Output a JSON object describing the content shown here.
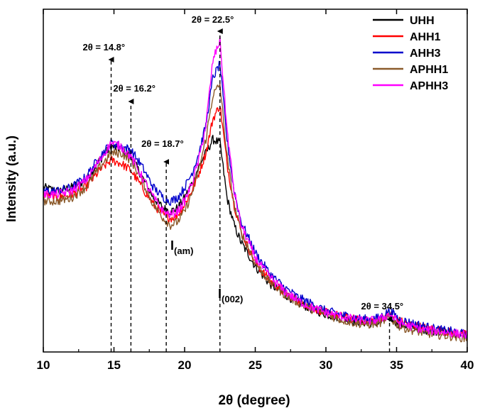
{
  "chart_data": {
    "type": "line",
    "xlabel": "2θ (degree)",
    "ylabel": "Intensity (a.u.)",
    "xlim": [
      10,
      40
    ],
    "ylim": [
      0,
      100
    ],
    "x_ticks": [
      "10",
      "15",
      "20",
      "25",
      "30",
      "35",
      "40"
    ],
    "y_ticks_shown": false,
    "grid": false,
    "legend_position": "top-right",
    "series": [
      {
        "name": "UHH",
        "color": "#000000",
        "x": [
          10,
          11,
          12,
          13,
          14,
          14.8,
          15.5,
          16.2,
          17,
          17.8,
          18.5,
          19,
          19.5,
          20,
          20.5,
          21,
          21.5,
          22,
          22.5,
          23,
          23.5,
          24,
          25,
          26,
          27,
          28,
          29,
          30,
          31,
          32,
          33,
          33.8,
          34.5,
          35.2,
          36,
          37,
          38,
          39,
          40
        ],
        "values": [
          48,
          47,
          48,
          50,
          56,
          60,
          59,
          57,
          51,
          45,
          42,
          41,
          42,
          45,
          49,
          54,
          58,
          62,
          61,
          45,
          37,
          32,
          25,
          20,
          17,
          14.5,
          12.5,
          11,
          10,
          9,
          8.5,
          8.5,
          10,
          8,
          7.5,
          6.5,
          6,
          5.5,
          5
        ]
      },
      {
        "name": "AHH1",
        "color": "#ff0000",
        "x": [
          10,
          11,
          12,
          13,
          14,
          14.8,
          15.5,
          16.2,
          17,
          17.8,
          18.5,
          19,
          19.5,
          20,
          20.5,
          21,
          21.5,
          22,
          22.5,
          23,
          23.5,
          24,
          25,
          26,
          27,
          28,
          29,
          30,
          31,
          32,
          33,
          33.8,
          34.5,
          35.2,
          36,
          37,
          38,
          39,
          40
        ],
        "values": [
          46,
          45,
          46,
          48,
          53,
          56,
          55,
          53,
          48,
          43,
          40,
          39,
          40,
          43,
          47,
          52,
          58,
          68,
          72,
          55,
          43,
          35,
          26,
          21,
          17.5,
          15,
          13,
          11.5,
          10.5,
          9.5,
          9,
          9.5,
          11,
          9,
          8,
          7,
          6.5,
          5.5,
          5
        ]
      },
      {
        "name": "AHH3",
        "color": "#0000cc",
        "x": [
          10,
          11,
          12,
          13,
          14,
          14.8,
          15.5,
          16.2,
          17,
          17.8,
          18.5,
          19,
          19.5,
          20,
          20.5,
          21,
          21.5,
          22,
          22.5,
          23,
          23.5,
          24,
          25,
          26,
          27,
          28,
          29,
          30,
          31,
          32,
          33,
          33.8,
          34.5,
          35.2,
          36,
          37,
          38,
          39,
          40
        ],
        "values": [
          47,
          47,
          48,
          51,
          57,
          61,
          60,
          59,
          54,
          48,
          45,
          44,
          45,
          48,
          52,
          58,
          66,
          80,
          84,
          62,
          47,
          38,
          29,
          23,
          19,
          16,
          14,
          12,
          11,
          10,
          9.5,
          10,
          12,
          9.5,
          8.5,
          7.5,
          6.5,
          6,
          5
        ]
      },
      {
        "name": "APHH1",
        "color": "#8b5a2b",
        "x": [
          10,
          11,
          12,
          13,
          14,
          14.8,
          15.5,
          16.2,
          17,
          17.8,
          18.5,
          19,
          19.5,
          20,
          20.5,
          21,
          21.5,
          22,
          22.5,
          23,
          23.5,
          24,
          25,
          26,
          27,
          28,
          29,
          30,
          31,
          32,
          33,
          33.8,
          34.5,
          35.2,
          36,
          37,
          38,
          39,
          40
        ],
        "values": [
          44,
          44,
          45,
          48,
          54,
          58,
          58,
          56,
          50,
          43,
          39,
          37,
          38,
          41,
          46,
          53,
          62,
          75,
          78,
          57,
          43,
          35,
          26,
          20.5,
          17,
          14.5,
          12.5,
          11,
          9.5,
          8.5,
          8,
          8.5,
          10,
          7.5,
          6.5,
          5.5,
          5,
          4.5,
          4
        ]
      },
      {
        "name": "APHH3",
        "color": "#ff00ff",
        "x": [
          10,
          11,
          12,
          13,
          14,
          14.8,
          15.5,
          16.2,
          17,
          17.8,
          18.5,
          19,
          19.5,
          20,
          20.5,
          21,
          21.5,
          22,
          22.5,
          23,
          23.5,
          24,
          25,
          26,
          27,
          28,
          29,
          30,
          31,
          32,
          33,
          33.8,
          34.5,
          35.2,
          36,
          37,
          38,
          39,
          40
        ],
        "values": [
          46,
          46,
          47,
          50,
          56,
          61,
          60,
          57,
          51,
          45,
          41,
          40,
          41,
          44,
          49,
          56,
          66,
          85,
          91,
          65,
          47,
          37,
          27.5,
          22,
          18,
          15,
          13,
          11.5,
          10.5,
          9.5,
          9,
          9.5,
          11,
          8.5,
          7.5,
          6.5,
          6,
          5.5,
          5
        ]
      }
    ],
    "annotations": [
      {
        "text": "2θ = 14.8°",
        "x": 14.8
      },
      {
        "text": "2θ = 16.2°",
        "x": 16.2
      },
      {
        "text": "2θ = 18.7°",
        "x": 18.7
      },
      {
        "text": "2θ = 22.5°",
        "x": 22.5
      },
      {
        "text": "2θ = 34.5°",
        "x": 34.5
      }
    ],
    "peak_labels": [
      {
        "base": "I",
        "sub": "(am)",
        "x": 18.7
      },
      {
        "base": "I",
        "sub": "(002)",
        "x": 22.5
      }
    ]
  }
}
